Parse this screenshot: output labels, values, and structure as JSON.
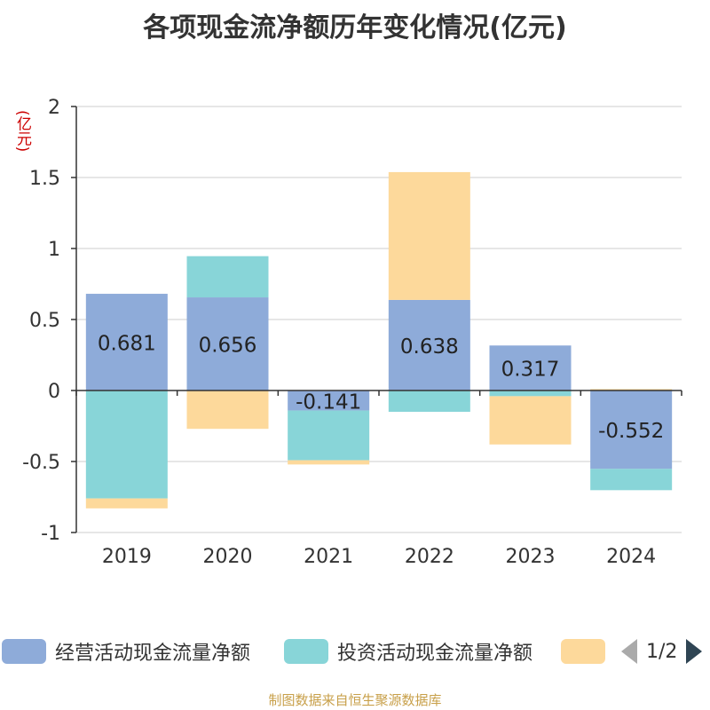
{
  "title": "各项现金流净额历年变化情况(亿元)",
  "unit_label": "(亿元)",
  "source": "制图数据来自恒生聚源数据库",
  "legend": {
    "items": [
      {
        "label": "经营活动现金流量净额",
        "color": "#8eabd9"
      },
      {
        "label": "投资活动现金流量净额",
        "color": "#88d5d8"
      },
      {
        "label": "",
        "color": "#fdd99b"
      }
    ],
    "page": "1/2"
  },
  "chart_data": {
    "type": "bar",
    "stacked": true,
    "categories": [
      "2019",
      "2020",
      "2021",
      "2022",
      "2023",
      "2024"
    ],
    "ylim": [
      -1,
      2
    ],
    "yticks": [
      "-1",
      "-0.5",
      "0",
      "0.5",
      "1",
      "1.5",
      "2"
    ],
    "series": [
      {
        "name": "经营活动现金流量净额",
        "color": "#8eabd9",
        "values": [
          0.681,
          0.656,
          -0.141,
          0.638,
          0.317,
          -0.552
        ],
        "labels": [
          "0.681",
          "0.656",
          "-0.141",
          "0.638",
          "0.317",
          "-0.552"
        ]
      },
      {
        "name": "投资活动现金流量净额",
        "color": "#88d5d8",
        "values": [
          -0.76,
          0.29,
          -0.35,
          -0.15,
          -0.04,
          -0.15
        ]
      },
      {
        "name": "",
        "color": "#fdd99b",
        "values": [
          -0.07,
          -0.27,
          -0.03,
          0.9,
          -0.34,
          0.01
        ]
      }
    ]
  }
}
